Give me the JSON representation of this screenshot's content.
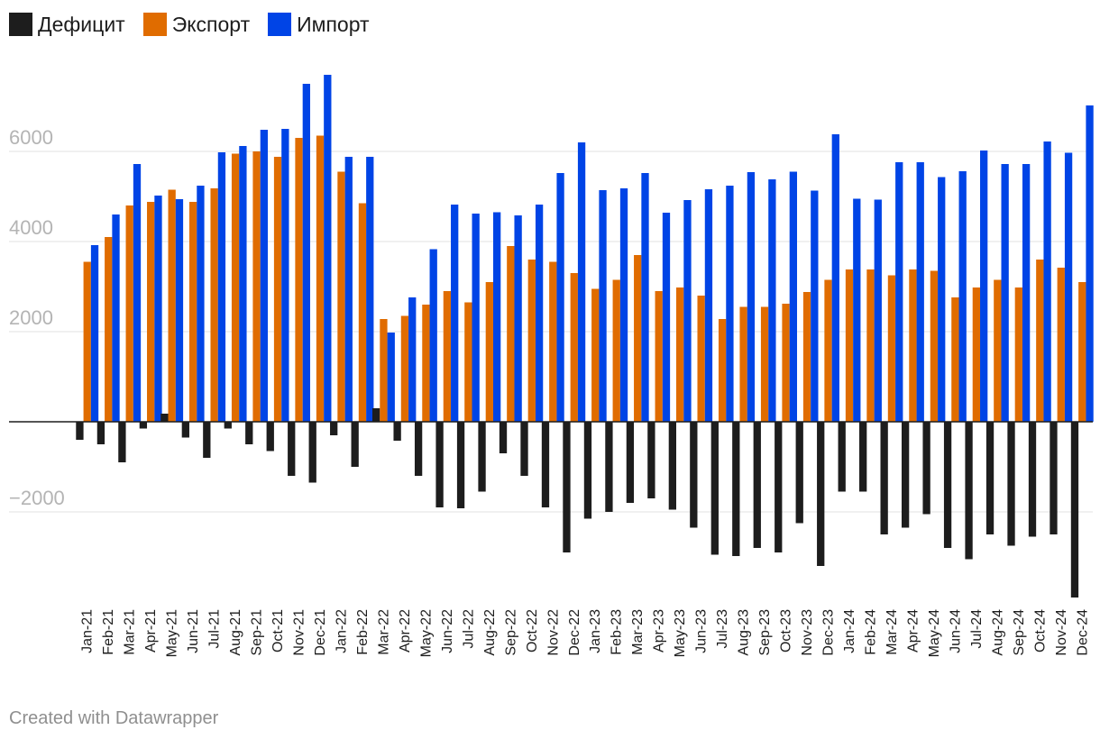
{
  "chart_data": {
    "type": "bar",
    "title": "",
    "xlabel": "",
    "ylabel": "",
    "ylim": [
      -3900,
      7700
    ],
    "yticks": [
      -2000,
      2000,
      4000,
      6000
    ],
    "yticks_negative_labels": {
      "-2000": "−2000"
    },
    "legend": "top-left",
    "categories": [
      "Jan-21",
      "Feb-21",
      "Mar-21",
      "Apr-21",
      "May-21",
      "Jun-21",
      "Jul-21",
      "Aug-21",
      "Sep-21",
      "Oct-21",
      "Nov-21",
      "Dec-21",
      "Jan-22",
      "Feb-22",
      "Mar-22",
      "Apr-22",
      "May-22",
      "Jun-22",
      "Jul-22",
      "Aug-22",
      "Sep-22",
      "Oct-22",
      "Nov-22",
      "Dec-22",
      "Jan-23",
      "Feb-23",
      "Mar-23",
      "Apr-23",
      "May-23",
      "Jun-23",
      "Jul-23",
      "Aug-23",
      "Sep-23",
      "Oct-23",
      "Nov-23",
      "Dec-23",
      "Jan-24",
      "Feb-24",
      "Mar-24",
      "Apr-24",
      "May-24",
      "Jun-24",
      "Jul-24",
      "Aug-24",
      "Sep-24",
      "Oct-24",
      "Nov-24",
      "Dec-24"
    ],
    "series": [
      {
        "name": "Дефицит",
        "color": "#1d1d1d",
        "values": [
          -400,
          -500,
          -900,
          -150,
          180,
          -350,
          -800,
          -150,
          -500,
          -650,
          -1200,
          -1350,
          -300,
          -1000,
          300,
          -420,
          -1200,
          -1900,
          -1920,
          -1550,
          -700,
          -1200,
          -1900,
          -2900,
          -2150,
          -2000,
          -1800,
          -1700,
          -1950,
          -2350,
          -2950,
          -2980,
          -2800,
          -2900,
          -2250,
          -3200,
          -1550,
          -1550,
          -2500,
          -2350,
          -2050,
          -2800,
          -3050,
          -2500,
          -2750,
          -2550,
          -2500,
          -3900
        ]
      },
      {
        "name": "Экспорт",
        "color": "#e06c00",
        "values": [
          3550,
          4100,
          4800,
          4880,
          5150,
          4880,
          5180,
          5950,
          6000,
          5880,
          6300,
          6350,
          5550,
          4850,
          2280,
          2350,
          2600,
          2900,
          2650,
          3100,
          3900,
          3600,
          3550,
          3300,
          2950,
          3150,
          3700,
          2900,
          2980,
          2800,
          2280,
          2550,
          2550,
          2620,
          2880,
          3150,
          3380,
          3380,
          3250,
          3380,
          3350,
          2760,
          2980,
          3150,
          2980,
          3600,
          3420,
          3100
        ]
      },
      {
        "name": "Импорт",
        "color": "#0044e6",
        "values": [
          3920,
          4600,
          5720,
          5020,
          4940,
          5240,
          5980,
          6120,
          6480,
          6500,
          7500,
          7700,
          5880,
          5880,
          1980,
          2760,
          3830,
          4820,
          4620,
          4650,
          4580,
          4820,
          5520,
          6200,
          5140,
          5180,
          5520,
          4640,
          4920,
          5160,
          5240,
          5540,
          5380,
          5550,
          5130,
          6380,
          4950,
          4930,
          5760,
          5760,
          5430,
          5560,
          6020,
          5720,
          5720,
          6220,
          5970,
          7020
        ]
      }
    ]
  },
  "credit": "Created with Datawrapper"
}
